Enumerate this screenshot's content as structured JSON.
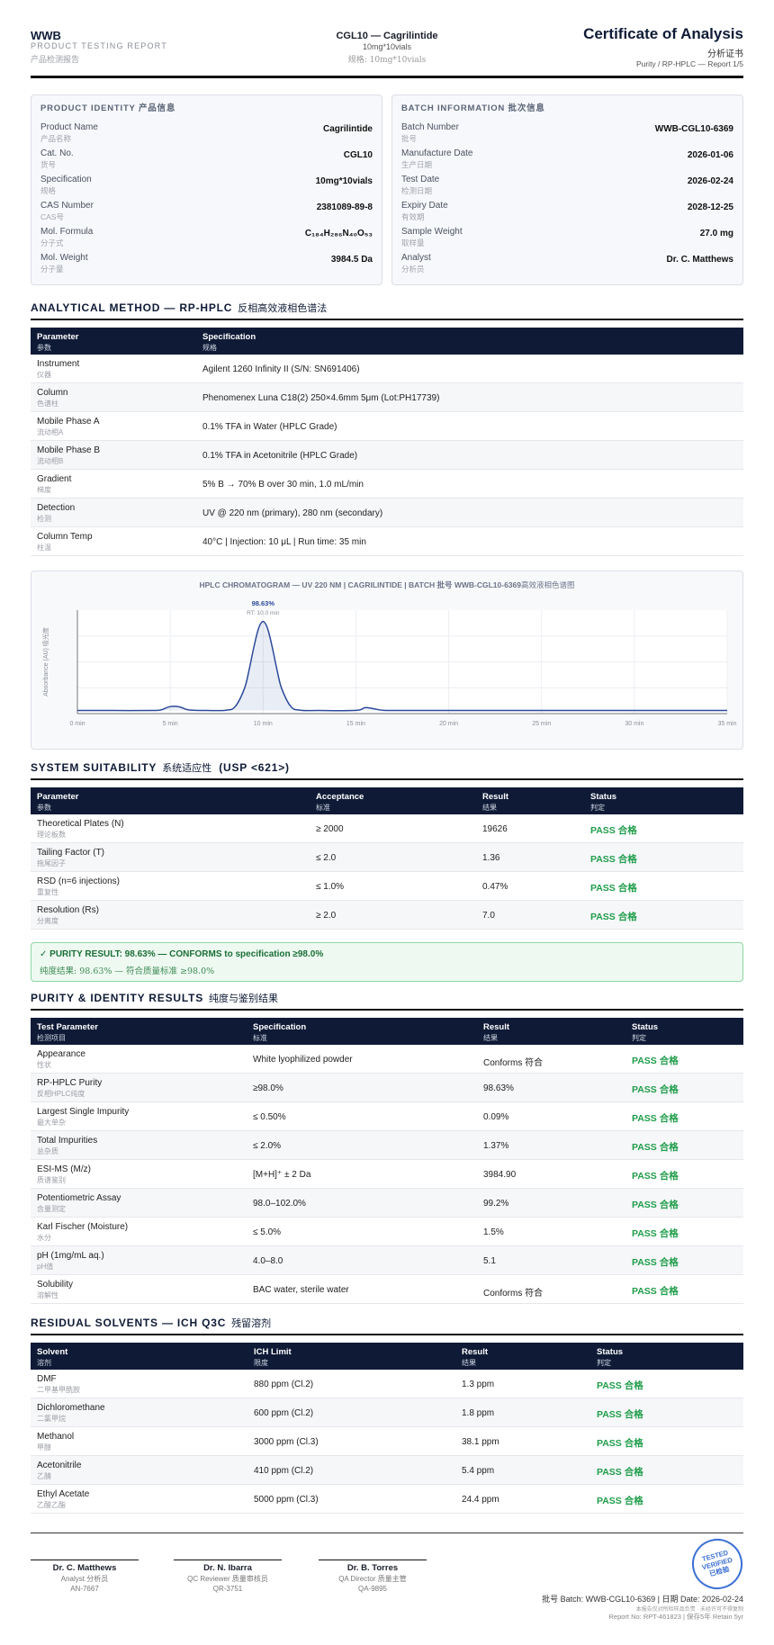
{
  "header": {
    "brand": "WWB",
    "subtitle": "PRODUCT TESTING REPORT",
    "subtitle_cn": "产品检测报告",
    "product": "CGL10 — Cagrilintide",
    "spec": "10mg*10vials",
    "spec_cn": "规格: 10mg*10vials",
    "title": "Certificate of Analysis",
    "title_cn": "分析证书",
    "report_line": "Purity / RP-HPLC — Report 1/5"
  },
  "product_identity": {
    "title": "PRODUCT IDENTITY 产品信息",
    "rows": [
      [
        "Product Name",
        "产品名称",
        "Cagrilintide"
      ],
      [
        "Cat. No.",
        "货号",
        "CGL10"
      ],
      [
        "Specification",
        "规格",
        "10mg*10vials"
      ],
      [
        "CAS Number",
        "CAS号",
        "2381089-89-8"
      ],
      [
        "Mol. Formula",
        "分子式",
        "C₁₈₄H₂₈₆N₄₀O₅₃"
      ],
      [
        "Mol. Weight",
        "分子量",
        "3984.5 Da"
      ]
    ]
  },
  "batch_information": {
    "title": "BATCH INFORMATION 批次信息",
    "rows": [
      [
        "Batch Number",
        "批号",
        "WWB-CGL10-6369"
      ],
      [
        "Manufacture Date",
        "生产日期",
        "2026-01-06"
      ],
      [
        "Test Date",
        "检测日期",
        "2026-02-24"
      ],
      [
        "Expiry Date",
        "有效期",
        "2028-12-25"
      ],
      [
        "Sample Weight",
        "取样量",
        "27.0 mg"
      ],
      [
        "Analyst",
        "分析员",
        "Dr. C. Matthews"
      ]
    ]
  },
  "analytical_method": {
    "title": "ANALYTICAL METHOD — RP-HPLC",
    "title_cn": "反相高效液相色谱法",
    "columns": [
      [
        "Parameter",
        "参数"
      ],
      [
        "Specification",
        "规格"
      ]
    ],
    "rows": [
      [
        "Instrument",
        "仪器",
        "Agilent 1260 Infinity II (S/N: SN691406)"
      ],
      [
        "Column",
        "色谱柱",
        "Phenomenex Luna C18(2) 250×4.6mm 5μm (Lot:PH17739)"
      ],
      [
        "Mobile Phase A",
        "流动相A",
        "0.1% TFA in Water (HPLC Grade)"
      ],
      [
        "Mobile Phase B",
        "流动相B",
        "0.1% TFA in Acetonitrile (HPLC Grade)"
      ],
      [
        "Gradient",
        "梯度",
        "5% B → 70% B over 30 min, 1.0 mL/min"
      ],
      [
        "Detection",
        "检测",
        "UV @ 220 nm (primary), 280 nm (secondary)"
      ],
      [
        "Column Temp",
        "柱温",
        "40°C | Injection: 10 μL | Run time: 35 min"
      ]
    ]
  },
  "chromatogram": {
    "type": "line",
    "title": "HPLC CHROMATOGRAM — UV 220 NM | CAGRILINTIDE | BATCH 批号 WWB-CGL10-6369",
    "title_cn": "高效液相色谱图",
    "y_label": "Absorbance (AU) 吸光度",
    "color": "#2c4a9a",
    "xlim": [
      0,
      35
    ],
    "ylim": [
      0,
      100
    ],
    "xticks": [
      {
        "value": 0,
        "label": "0 min"
      },
      {
        "value": 5,
        "label": "5 min"
      },
      {
        "value": 10,
        "label": "10 min"
      },
      {
        "value": 15,
        "label": "15 min"
      },
      {
        "value": 20,
        "label": "20 min"
      },
      {
        "value": 25,
        "label": "25 min"
      },
      {
        "value": 30,
        "label": "30 min"
      },
      {
        "value": 35,
        "label": "35 min"
      }
    ],
    "x": [
      0,
      2,
      4,
      4.5,
      5,
      5.5,
      6,
      7,
      8,
      8.5,
      9,
      9.25,
      9.5,
      9.75,
      10,
      10.25,
      10.5,
      10.75,
      11,
      11.5,
      12,
      13,
      15,
      15.5,
      16,
      16.5,
      18,
      22,
      26,
      30,
      35
    ],
    "values": [
      3,
      3,
      3,
      3.6,
      6.8,
      6.5,
      3.6,
      3,
      3.3,
      6.8,
      24.4,
      42.4,
      63.8,
      81.9,
      89,
      81.9,
      63.8,
      42.4,
      24.4,
      6.8,
      3.3,
      3,
      3.1,
      5.8,
      4.6,
      3.2,
      3,
      3,
      3,
      3,
      3
    ],
    "peak": {
      "x": 10,
      "label": "98.63%",
      "rt_label": "RT: 10.0 min"
    }
  },
  "system_suitability": {
    "title": "SYSTEM SUITABILITY",
    "title_cn": "系统适应性",
    "title_suffix": "(USP <621>)",
    "columns": [
      [
        "Parameter",
        "参数"
      ],
      [
        "Acceptance",
        "标准"
      ],
      [
        "Result",
        "结果"
      ],
      [
        "Status",
        "判定"
      ]
    ],
    "rows": [
      [
        "Theoretical Plates (N)",
        "理论板数",
        "≥ 2000",
        "19626",
        "PASS 合格"
      ],
      [
        "Tailing Factor (T)",
        "拖尾因子",
        "≤ 2.0",
        "1.36",
        "PASS 合格"
      ],
      [
        "RSD (n=6 injections)",
        "重复性",
        "≤ 1.0%",
        "0.47%",
        "PASS 合格"
      ],
      [
        "Resolution (Rs)",
        "分离度",
        "≥ 2.0",
        "7.0",
        "PASS 合格"
      ]
    ]
  },
  "purity_result": {
    "line": "✓ PURITY RESULT: 98.63% — CONFORMS to specification ≥98.0%",
    "line_cn": "纯度结果: 98.63% — 符合质量标准 ≥98.0%"
  },
  "purity_identity": {
    "title": "PURITY & IDENTITY RESULTS",
    "title_cn": "纯度与鉴别结果",
    "columns": [
      [
        "Test Parameter",
        "检测项目"
      ],
      [
        "Specification",
        "标准"
      ],
      [
        "Result",
        "结果"
      ],
      [
        "Status",
        "判定"
      ]
    ],
    "rows": [
      [
        "Appearance",
        "性状",
        "White lyophilized powder",
        "Conforms 符合",
        "PASS 合格"
      ],
      [
        "RP-HPLC Purity",
        "反相HPLC纯度",
        "≥98.0%",
        "98.63%",
        "PASS 合格"
      ],
      [
        "Largest Single Impurity",
        "最大单杂",
        "≤ 0.50%",
        "0.09%",
        "PASS 合格"
      ],
      [
        "Total Impurities",
        "总杂质",
        "≤ 2.0%",
        "1.37%",
        "PASS 合格"
      ],
      [
        "ESI-MS (M/z)",
        "质谱鉴别",
        "[M+H]⁺ ± 2 Da",
        "3984.90",
        "PASS 合格"
      ],
      [
        "Potentiometric Assay",
        "含量测定",
        "98.0–102.0%",
        "99.2%",
        "PASS 合格"
      ],
      [
        "Karl Fischer (Moisture)",
        "水分",
        "≤ 5.0%",
        "1.5%",
        "PASS 合格"
      ],
      [
        "pH (1mg/mL aq.)",
        "pH值",
        "4.0–8.0",
        "5.1",
        "PASS 合格"
      ],
      [
        "Solubility",
        "溶解性",
        "BAC water, sterile water",
        "Conforms 符合",
        "PASS 合格"
      ]
    ]
  },
  "residual_solvents": {
    "title": "RESIDUAL SOLVENTS — ICH Q3C",
    "title_cn": "残留溶剂",
    "columns": [
      [
        "Solvent",
        "溶剂"
      ],
      [
        "ICH Limit",
        "限度"
      ],
      [
        "Result",
        "结果"
      ],
      [
        "Status",
        "判定"
      ]
    ],
    "rows": [
      [
        "DMF",
        "二甲基甲酰胺",
        "880 ppm (Cl.2)",
        "1.3 ppm",
        "PASS 合格"
      ],
      [
        "Dichloromethane",
        "二氯甲烷",
        "600 ppm (Cl.2)",
        "1.8 ppm",
        "PASS 合格"
      ],
      [
        "Methanol",
        "甲醇",
        "3000 ppm (Cl.3)",
        "38.1 ppm",
        "PASS 合格"
      ],
      [
        "Acetonitrile",
        "乙腈",
        "410 ppm (Cl.2)",
        "5.4 ppm",
        "PASS 合格"
      ],
      [
        "Ethyl Acetate",
        "乙酸乙酯",
        "5000 ppm (Cl.3)",
        "24.4 ppm",
        "PASS 合格"
      ]
    ]
  },
  "signatures": [
    {
      "name": "Dr. C. Matthews",
      "role": "Analyst 分析员",
      "id": "AN-7667"
    },
    {
      "name": "Dr. N. Ibarra",
      "role": "QC Reviewer 质量审核员",
      "id": "QR-3751"
    },
    {
      "name": "Dr. B. Torres",
      "role": "QA Director 质量主管",
      "id": "QA-9895"
    }
  ],
  "stamp": [
    "TESTED",
    "VERIFIED",
    "已检验"
  ],
  "footer": {
    "batch_line": "批号 Batch: WWB-CGL10-6369 | 日期 Date: 2026-02-24",
    "note": "本报告仅对所检样品负责 · 未经许可不得复制",
    "report_line": "Report No: RPT-461823 | 保存5年 Retain 5yr"
  }
}
